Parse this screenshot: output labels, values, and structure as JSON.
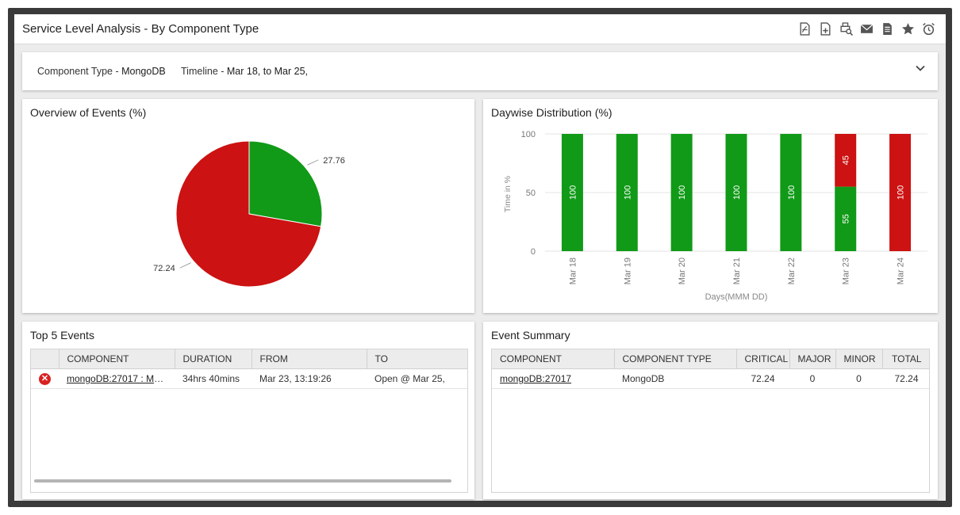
{
  "header": {
    "title": "Service Level Analysis - By Component Type",
    "toolbar_icons": [
      "pdf-export-icon",
      "add-file-icon",
      "print-preview-icon",
      "email-icon",
      "report-icon",
      "favorite-star-icon",
      "schedule-alarm-icon"
    ]
  },
  "filters": {
    "component_type_label": "Component Type - ",
    "component_type_value": "MongoDB",
    "timeline_label": "Timeline - ",
    "timeline_value": "Mar 18,  to Mar 25,"
  },
  "overview": {
    "title": "Overview of Events (%)"
  },
  "daywise": {
    "title": "Daywise Distribution (%)"
  },
  "colors": {
    "green": "#119a18",
    "red": "#cc1212"
  },
  "chart_data": [
    {
      "type": "pie",
      "title": "Overview of Events (%)",
      "slices": [
        {
          "value": 27.76,
          "label": "27.76",
          "color": "#119a18"
        },
        {
          "value": 72.24,
          "label": "72.24",
          "color": "#cc1212"
        }
      ]
    },
    {
      "type": "bar",
      "stacked": true,
      "title": "Daywise Distribution (%)",
      "xlabel": "Days(MMM DD)",
      "ylabel": "Time in %",
      "ylim": [
        0,
        100
      ],
      "yticks": [
        "0",
        "50",
        "100"
      ],
      "categories": [
        "Mar 18",
        "Mar 19",
        "Mar 20",
        "Mar 21",
        "Mar 22",
        "Mar 23",
        "Mar 24"
      ],
      "series": [
        {
          "color": "#119a18",
          "values": [
            100,
            100,
            100,
            100,
            100,
            55,
            0
          ]
        },
        {
          "color": "#cc1212",
          "values": [
            0,
            0,
            0,
            0,
            0,
            45,
            100
          ]
        }
      ],
      "grid": true
    }
  ],
  "top_events": {
    "title": "Top 5 Events",
    "columns": [
      "COMPONENT",
      "DURATION",
      "FROM",
      "TO"
    ],
    "rows": [
      {
        "status_icon": "error-icon",
        "component": "mongoDB:27017 : Mo...",
        "duration": "34hrs 40mins",
        "from": "Mar 23,  13:19:26",
        "to": "Open @ Mar 25,"
      }
    ]
  },
  "event_summary": {
    "title": "Event Summary",
    "columns": [
      "COMPONENT",
      "COMPONENT TYPE",
      "CRITICAL",
      "MAJOR",
      "MINOR",
      "TOTAL"
    ],
    "rows": [
      {
        "component": "mongoDB:27017",
        "component_type": "MongoDB",
        "critical": "72.24",
        "major": "0",
        "minor": "0",
        "total": "72.24"
      }
    ]
  }
}
